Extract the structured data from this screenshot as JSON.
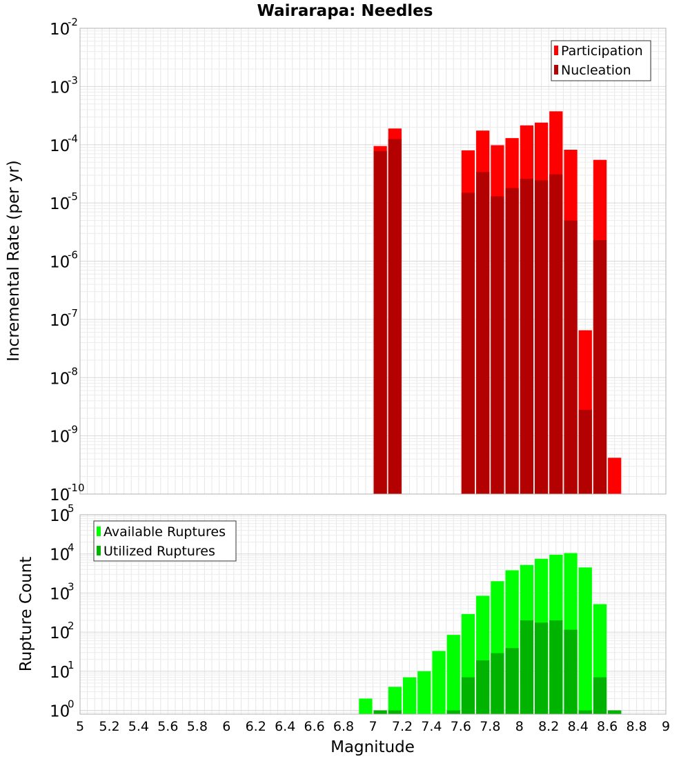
{
  "title": "Wairarapa: Needles",
  "colors": {
    "participation": "#ff0000",
    "nucleation": "#b30000",
    "available": "#00ff00",
    "utilized": "#00b300",
    "grid": "#e6e6e6",
    "frame": "#b0b0b0"
  },
  "chart_data": [
    {
      "type": "bar",
      "panel": "top",
      "title": "Wairarapa: Needles",
      "xlabel": "",
      "ylabel": "Incremental Rate (per yr)",
      "xlim": [
        5,
        9
      ],
      "ylim": [
        1e-10,
        0.01
      ],
      "yscale": "log",
      "ytick_exponents": [
        -10,
        -9,
        -8,
        -7,
        -6,
        -5,
        -4,
        -3,
        -2
      ],
      "grid": true,
      "legend_position": "top-right",
      "bin_width": 0.1,
      "series": [
        {
          "name": "Participation",
          "color": "#ff0000",
          "points": [
            {
              "x": 7.05,
              "y": 9.5e-05
            },
            {
              "x": 7.15,
              "y": 0.00019
            },
            {
              "x": 7.65,
              "y": 8e-05
            },
            {
              "x": 7.75,
              "y": 0.000175
            },
            {
              "x": 7.85,
              "y": 9.8e-05
            },
            {
              "x": 7.95,
              "y": 0.00013
            },
            {
              "x": 8.05,
              "y": 0.000215
            },
            {
              "x": 8.15,
              "y": 0.00024
            },
            {
              "x": 8.25,
              "y": 0.000375
            },
            {
              "x": 8.35,
              "y": 8.2e-05
            },
            {
              "x": 8.45,
              "y": 6.5e-08
            },
            {
              "x": 8.55,
              "y": 5.5e-05
            },
            {
              "x": 8.65,
              "y": 4.2e-10
            }
          ]
        },
        {
          "name": "Nucleation",
          "color": "#b30000",
          "points": [
            {
              "x": 7.05,
              "y": 7.8e-05
            },
            {
              "x": 7.15,
              "y": 0.000125
            },
            {
              "x": 7.65,
              "y": 1.5e-05
            },
            {
              "x": 7.75,
              "y": 3.4e-05
            },
            {
              "x": 7.85,
              "y": 1.3e-05
            },
            {
              "x": 7.95,
              "y": 1.8e-05
            },
            {
              "x": 8.05,
              "y": 2.6e-05
            },
            {
              "x": 8.15,
              "y": 2.45e-05
            },
            {
              "x": 8.25,
              "y": 3.1e-05
            },
            {
              "x": 8.35,
              "y": 5e-06
            },
            {
              "x": 8.45,
              "y": 2.8e-09
            },
            {
              "x": 8.55,
              "y": 2.3e-06
            }
          ]
        }
      ]
    },
    {
      "type": "bar",
      "panel": "bottom",
      "xlabel": "Magnitude",
      "ylabel": "Rupture Count",
      "xlim": [
        5,
        9
      ],
      "ylim": [
        0.8,
        100000
      ],
      "yscale": "log",
      "ytick_exponents": [
        0,
        1,
        2,
        3,
        4,
        5
      ],
      "xticks": [
        "5",
        "5.2",
        "5.4",
        "5.6",
        "5.8",
        "6",
        "6.2",
        "6.4",
        "6.6",
        "6.8",
        "7",
        "7.2",
        "7.4",
        "7.6",
        "7.8",
        "8",
        "8.2",
        "8.4",
        "8.6",
        "8.8",
        "9"
      ],
      "grid": true,
      "legend_position": "top-left",
      "bin_width": 0.1,
      "series": [
        {
          "name": "Available Ruptures",
          "color": "#00ff00",
          "points": [
            {
              "x": 6.95,
              "y": 2
            },
            {
              "x": 7.05,
              "y": 1
            },
            {
              "x": 7.15,
              "y": 4
            },
            {
              "x": 7.25,
              "y": 7
            },
            {
              "x": 7.35,
              "y": 10
            },
            {
              "x": 7.45,
              "y": 33
            },
            {
              "x": 7.55,
              "y": 85
            },
            {
              "x": 7.65,
              "y": 290
            },
            {
              "x": 7.75,
              "y": 850
            },
            {
              "x": 7.85,
              "y": 2000
            },
            {
              "x": 7.95,
              "y": 3800
            },
            {
              "x": 8.05,
              "y": 5200
            },
            {
              "x": 8.15,
              "y": 7500
            },
            {
              "x": 8.25,
              "y": 9500
            },
            {
              "x": 8.35,
              "y": 10500
            },
            {
              "x": 8.45,
              "y": 4500
            },
            {
              "x": 8.55,
              "y": 520
            },
            {
              "x": 8.65,
              "y": 1
            }
          ]
        },
        {
          "name": "Utilized Ruptures",
          "color": "#00b300",
          "points": [
            {
              "x": 7.05,
              "y": 1
            },
            {
              "x": 7.15,
              "y": 1
            },
            {
              "x": 7.55,
              "y": 1
            },
            {
              "x": 7.65,
              "y": 7
            },
            {
              "x": 7.75,
              "y": 19
            },
            {
              "x": 7.85,
              "y": 29
            },
            {
              "x": 7.95,
              "y": 39
            },
            {
              "x": 8.05,
              "y": 200
            },
            {
              "x": 8.15,
              "y": 175
            },
            {
              "x": 8.25,
              "y": 200
            },
            {
              "x": 8.35,
              "y": 115
            },
            {
              "x": 8.45,
              "y": 1
            },
            {
              "x": 8.55,
              "y": 7
            },
            {
              "x": 8.65,
              "y": 1
            }
          ]
        }
      ]
    }
  ]
}
